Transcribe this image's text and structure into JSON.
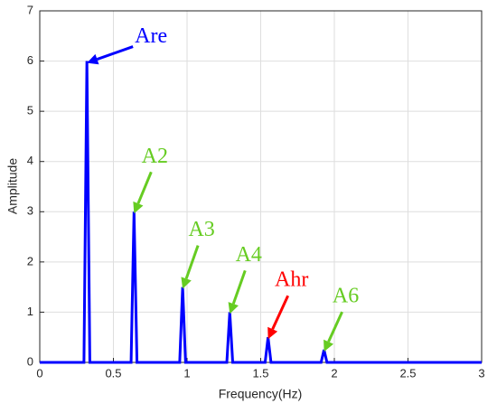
{
  "chart_data": {
    "type": "line",
    "x": [
      0,
      0.3,
      0.32,
      0.34,
      0.62,
      0.64,
      0.66,
      0.95,
      0.97,
      0.99,
      1.27,
      1.29,
      1.31,
      1.53,
      1.55,
      1.57,
      1.91,
      1.93,
      1.95,
      3
    ],
    "series": [
      {
        "color": "#0000ff",
        "values": [
          0,
          0,
          6,
          0,
          0,
          3,
          0,
          0,
          1.5,
          0,
          0,
          1,
          0,
          0,
          0.5,
          0,
          0,
          0.25,
          0,
          0
        ]
      }
    ],
    "xlabel": "Frequency(Hz)",
    "ylabel": "Amplitude",
    "xlim": [
      0,
      3
    ],
    "xticks": [
      0,
      0.5,
      1,
      1.5,
      2,
      2.5,
      3
    ],
    "ylim": [
      0,
      7
    ],
    "yticks": [
      0,
      1,
      2,
      3,
      4,
      5,
      6,
      7
    ],
    "grid": true,
    "annotations": [
      {
        "text": "Are",
        "color": "#0000ff",
        "x": 0.32,
        "y": 6
      },
      {
        "text": "A2",
        "color": "#66cc22",
        "x": 0.64,
        "y": 3
      },
      {
        "text": "A3",
        "color": "#66cc22",
        "x": 0.97,
        "y": 1.5
      },
      {
        "text": "A4",
        "color": "#66cc22",
        "x": 1.29,
        "y": 1
      },
      {
        "text": "Ahr",
        "color": "#ff0000",
        "x": 1.55,
        "y": 0.5
      },
      {
        "text": "A6",
        "color": "#66cc22",
        "x": 1.93,
        "y": 0.25
      }
    ]
  }
}
